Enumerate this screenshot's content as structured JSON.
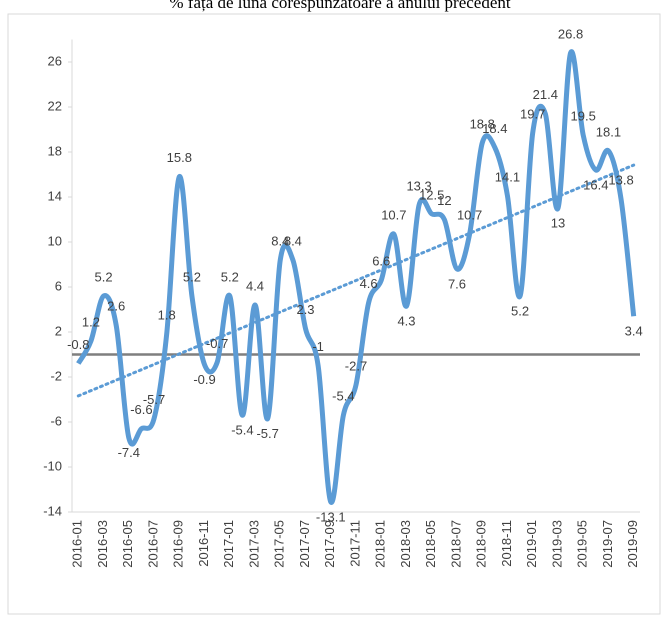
{
  "chart_data": {
    "type": "line",
    "title": "% față de luna corespunzătoare a anului precedent",
    "categories": [
      "2016-01",
      null,
      "2016-03",
      null,
      "2016-05",
      null,
      "2016-07",
      null,
      "2016-09",
      null,
      "2016-11",
      null,
      "2017-01",
      null,
      "2017-03",
      null,
      "2017-05",
      null,
      "2017-07",
      null,
      "2017-09",
      null,
      "2017-11",
      null,
      "2018-01",
      null,
      "2018-03",
      null,
      "2018-05",
      null,
      "2018-07",
      null,
      "2018-09",
      null,
      "2018-11",
      null,
      "2019-01",
      null,
      "2019-03",
      null,
      "2019-05",
      null,
      "2019-07",
      null,
      "2019-09"
    ],
    "values": [
      -0.8,
      1.2,
      5.2,
      2.6,
      -7.4,
      -6.6,
      -5.7,
      1.8,
      15.8,
      5.2,
      -0.9,
      -0.7,
      5.2,
      -5.4,
      4.4,
      -5.7,
      8.4,
      8.4,
      2.3,
      -1,
      -13.1,
      -5.4,
      -2.7,
      4.6,
      6.6,
      10.7,
      4.3,
      13.3,
      12.5,
      12,
      7.6,
      10.7,
      18.8,
      18.4,
      14.1,
      5.2,
      19.7,
      21.4,
      13,
      26.8,
      19.5,
      16.4,
      18.1,
      13.8,
      3.4
    ],
    "color": "#5b9bd5",
    "ylim": [
      -14,
      28
    ],
    "yticks": [
      -14,
      -10,
      -6,
      -2,
      2,
      6,
      10,
      14,
      18,
      22,
      26
    ],
    "trendline": true,
    "zero_line": true
  }
}
